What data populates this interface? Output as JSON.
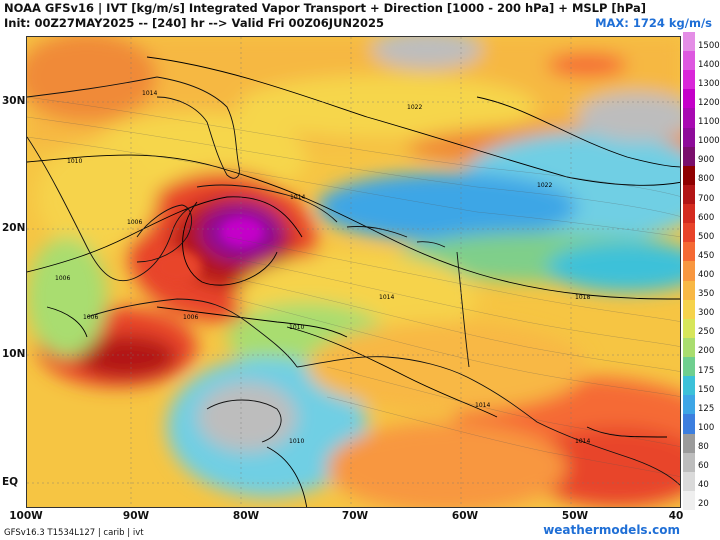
{
  "header": {
    "title": "NOAA GFSv16 | IVT [kg/m/s] Integrated Vapor Transport + Direction [1000 - 200 hPa] + MSLP [hPa]",
    "init_line": "Init: 00Z27MAY2025 -- [240] hr --> Valid Fri 00Z06JUN2025",
    "max_value": "MAX: 1724 kg/m/s"
  },
  "map": {
    "lat_labels": [
      "30N",
      "20N",
      "10N",
      "EQ"
    ],
    "lon_labels": [
      "100W",
      "90W",
      "80W",
      "70W",
      "60W",
      "50W",
      "40"
    ],
    "isobar_labels": [
      "1014",
      "1022",
      "1022",
      "1010",
      "1014",
      "1006",
      "1006",
      "1006",
      "1006",
      "1010",
      "1014",
      "1018",
      "1014",
      "1014",
      "1010"
    ],
    "colors": {
      "ocean_base": "#f6b63c",
      "land": "#ffffff",
      "boundary": "#111111",
      "isobar": "#000000"
    }
  },
  "colorbar": {
    "labels": [
      "1500",
      "1400",
      "1300",
      "1200",
      "1100",
      "1000",
      "900",
      "800",
      "700",
      "600",
      "500",
      "450",
      "400",
      "350",
      "300",
      "250",
      "200",
      "175",
      "150",
      "125",
      "100",
      "80",
      "60",
      "40",
      "20"
    ],
    "colors": [
      "#e48ee6",
      "#dd58e0",
      "#d927d9",
      "#c400c9",
      "#a80ab2",
      "#8e0c9a",
      "#7a0f6c",
      "#8f0000",
      "#b21515",
      "#d42b1f",
      "#e8442a",
      "#f56a34",
      "#f89740",
      "#f8b845",
      "#f6d34b",
      "#d7e65a",
      "#a9dd6f",
      "#6fcf8f",
      "#3cc1d9",
      "#3ea6e6",
      "#3d7fdf",
      "#9b9b9b",
      "#bdbdbd",
      "#dadada",
      "#efefef"
    ]
  },
  "footer": {
    "model_info": "GFSv16.3 T1534L127 | carib | ivt",
    "website": "weathermodels.com"
  }
}
